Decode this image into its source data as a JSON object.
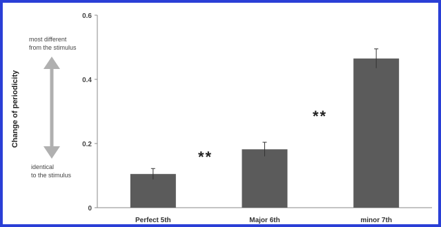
{
  "chart_data": {
    "type": "bar",
    "categories": [
      "Perfect 5th",
      "Major 6th",
      "minor 7th"
    ],
    "values": [
      0.105,
      0.182,
      0.465
    ],
    "errors": [
      0.017,
      0.022,
      0.03
    ],
    "ylabel": "Change of periodicity",
    "ylim": [
      0,
      0.6
    ],
    "yticks": [
      0,
      0.2,
      0.4,
      0.6
    ],
    "ytick_labels": [
      "0",
      "0.2",
      "0.4",
      "0.6"
    ],
    "grid": false,
    "bar_color": "#5b5b5b",
    "annotations": {
      "top": [
        "most different",
        "from the stimulus"
      ],
      "bottom": [
        "identical",
        "to the stimulus"
      ],
      "significance": [
        "**",
        "**"
      ]
    },
    "arrow_color": "#b0b0b0"
  }
}
